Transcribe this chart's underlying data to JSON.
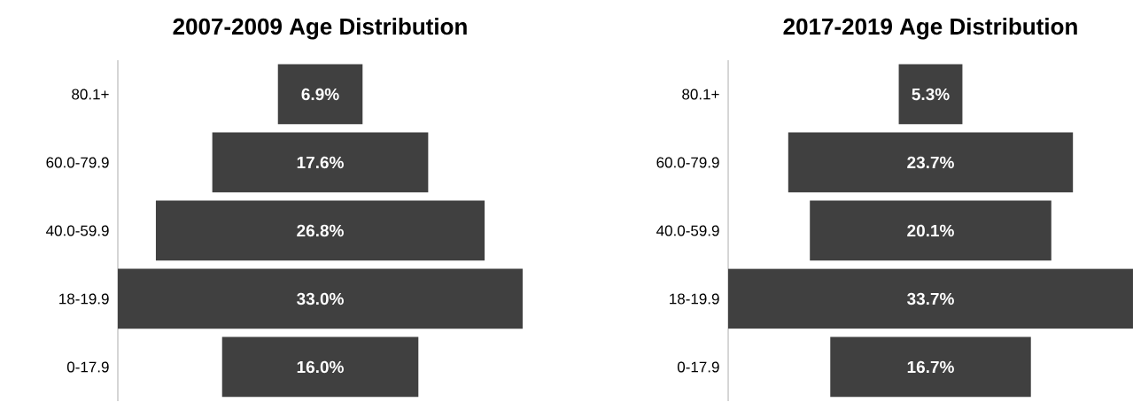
{
  "chart_data": [
    {
      "type": "other",
      "title": "2007-2009 Age Distribution",
      "categories": [
        "80.1+",
        "60.0-79.9",
        "40.0-59.9",
        "18-19.9",
        "0-17.9"
      ],
      "values": [
        6.9,
        17.6,
        26.8,
        33.0,
        16.0
      ],
      "value_labels": [
        "6.9%",
        "17.6%",
        "26.8%",
        "33.0%",
        "16.0%"
      ],
      "color": "#404040"
    },
    {
      "type": "other",
      "title": "2017-2019 Age Distribution",
      "categories": [
        "80.1+",
        "60.0-79.9",
        "40.0-59.9",
        "18-19.9",
        "0-17.9"
      ],
      "values": [
        5.3,
        23.7,
        20.1,
        33.7,
        16.7
      ],
      "value_labels": [
        "5.3%",
        "23.7%",
        "20.1%",
        "33.7%",
        "16.7%"
      ],
      "color": "#404040"
    }
  ]
}
